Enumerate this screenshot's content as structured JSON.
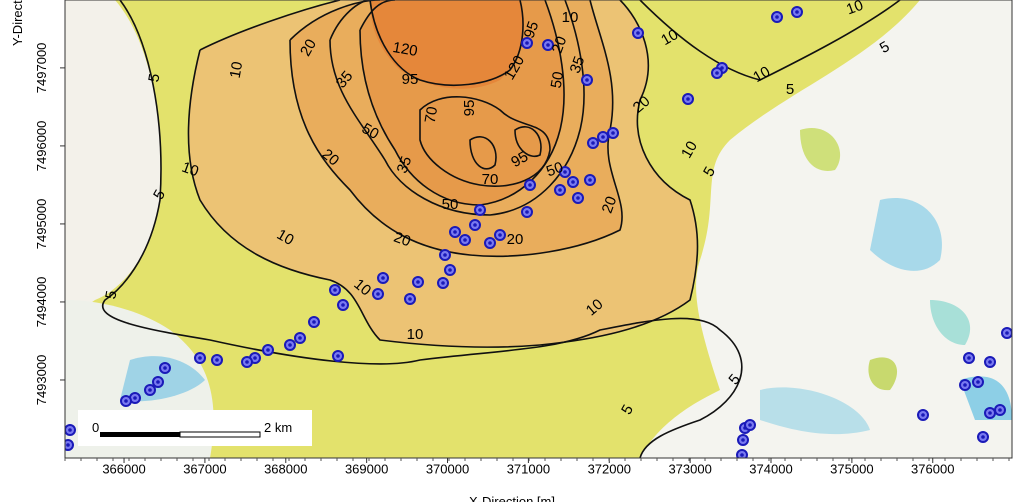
{
  "axes": {
    "x_label": "X-Direction [m]",
    "y_label": "Y-Direction [m]",
    "x_ticks": [
      366000,
      367000,
      368000,
      369000,
      370000,
      371000,
      372000,
      373000,
      374000,
      375000,
      376000
    ],
    "y_ticks": [
      7493000,
      7494000,
      7495000,
      7496000,
      7497000
    ],
    "x_extent": [
      365270,
      376980
    ],
    "y_extent": [
      7492000,
      7497870
    ]
  },
  "contour_labels": [
    10,
    10,
    10,
    5,
    5,
    10,
    20,
    35,
    120,
    95,
    120,
    95,
    20,
    35,
    50,
    20,
    10,
    5,
    70,
    95,
    50,
    35,
    70,
    95,
    20,
    10,
    5,
    10,
    5,
    50,
    20,
    50,
    20,
    20,
    10,
    5,
    10,
    10,
    10,
    5,
    5
  ],
  "scale_bar": {
    "start": "0",
    "end": "2 km"
  }
}
